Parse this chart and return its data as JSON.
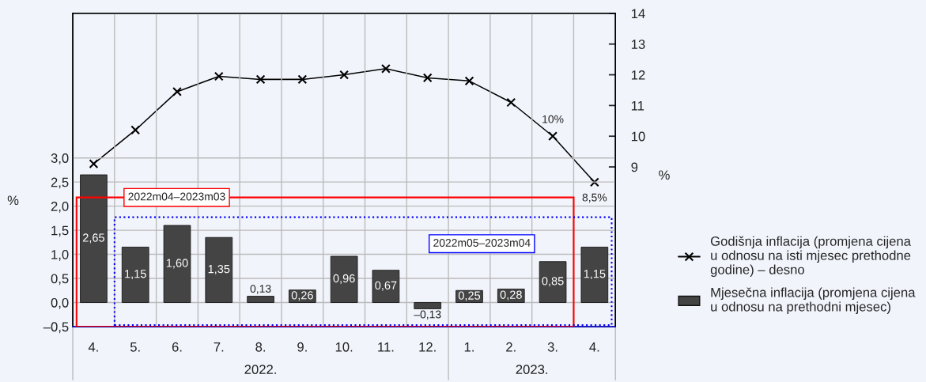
{
  "chart_data": {
    "type": "bar",
    "categories": [
      "4.",
      "5.",
      "6.",
      "7.",
      "8.",
      "9.",
      "10.",
      "11.",
      "12.",
      "1.",
      "2.",
      "3.",
      "4."
    ],
    "series": [
      {
        "name": "Godišnja inflacija (promjena cijena\nu odnosu na isti mjesec prethodne\ngodine) – desno",
        "type": "line",
        "axis": "y2",
        "color": "#000000",
        "marker": "cross",
        "values": [
          9.1,
          10.2,
          11.45,
          11.95,
          11.85,
          11.85,
          12.0,
          12.2,
          11.9,
          11.8,
          11.1,
          10.0,
          8.5
        ],
        "value_labels": [
          null,
          null,
          null,
          null,
          null,
          null,
          null,
          null,
          null,
          null,
          null,
          "10%",
          "8,5%"
        ]
      },
      {
        "name": "Mjesečna inflacija (promjena cijena\nu odnosu na prethodni mjesec)",
        "color": "#444444",
        "values": [
          2.65,
          1.15,
          1.6,
          1.35,
          0.13,
          0.26,
          0.96,
          0.67,
          -0.13,
          0.25,
          0.28,
          0.85,
          1.15
        ],
        "value_labels": [
          "2,65",
          "1,15",
          "1,60",
          "1,35",
          "0,13",
          "0,26",
          "0,96",
          "0,67",
          "–0,13",
          "0,25",
          "0,28",
          "0,85",
          "1,15"
        ]
      }
    ],
    "ylabel": "%",
    "y2label": "%",
    "ylim": [
      -0.5,
      6.0
    ],
    "yticks": [
      {
        "value": -0.5,
        "label": "–0,5"
      },
      {
        "value": 0.0,
        "label": "0,0"
      },
      {
        "value": 0.5,
        "label": "0,5"
      },
      {
        "value": 1.0,
        "label": "1,0"
      },
      {
        "value": 1.5,
        "label": "1,5"
      },
      {
        "value": 2.0,
        "label": "2,0"
      },
      {
        "value": 2.5,
        "label": "2,5"
      },
      {
        "value": 3.0,
        "label": "3,0"
      }
    ],
    "y2lim": [
      3.8,
      14
    ],
    "y2ticks": [
      9,
      10,
      11,
      12,
      13,
      14
    ],
    "annotations": [
      "2022m04–2023m03",
      "2022m05–2023m04",
      "2022.",
      "2023."
    ],
    "grid": true,
    "legend": "right"
  }
}
